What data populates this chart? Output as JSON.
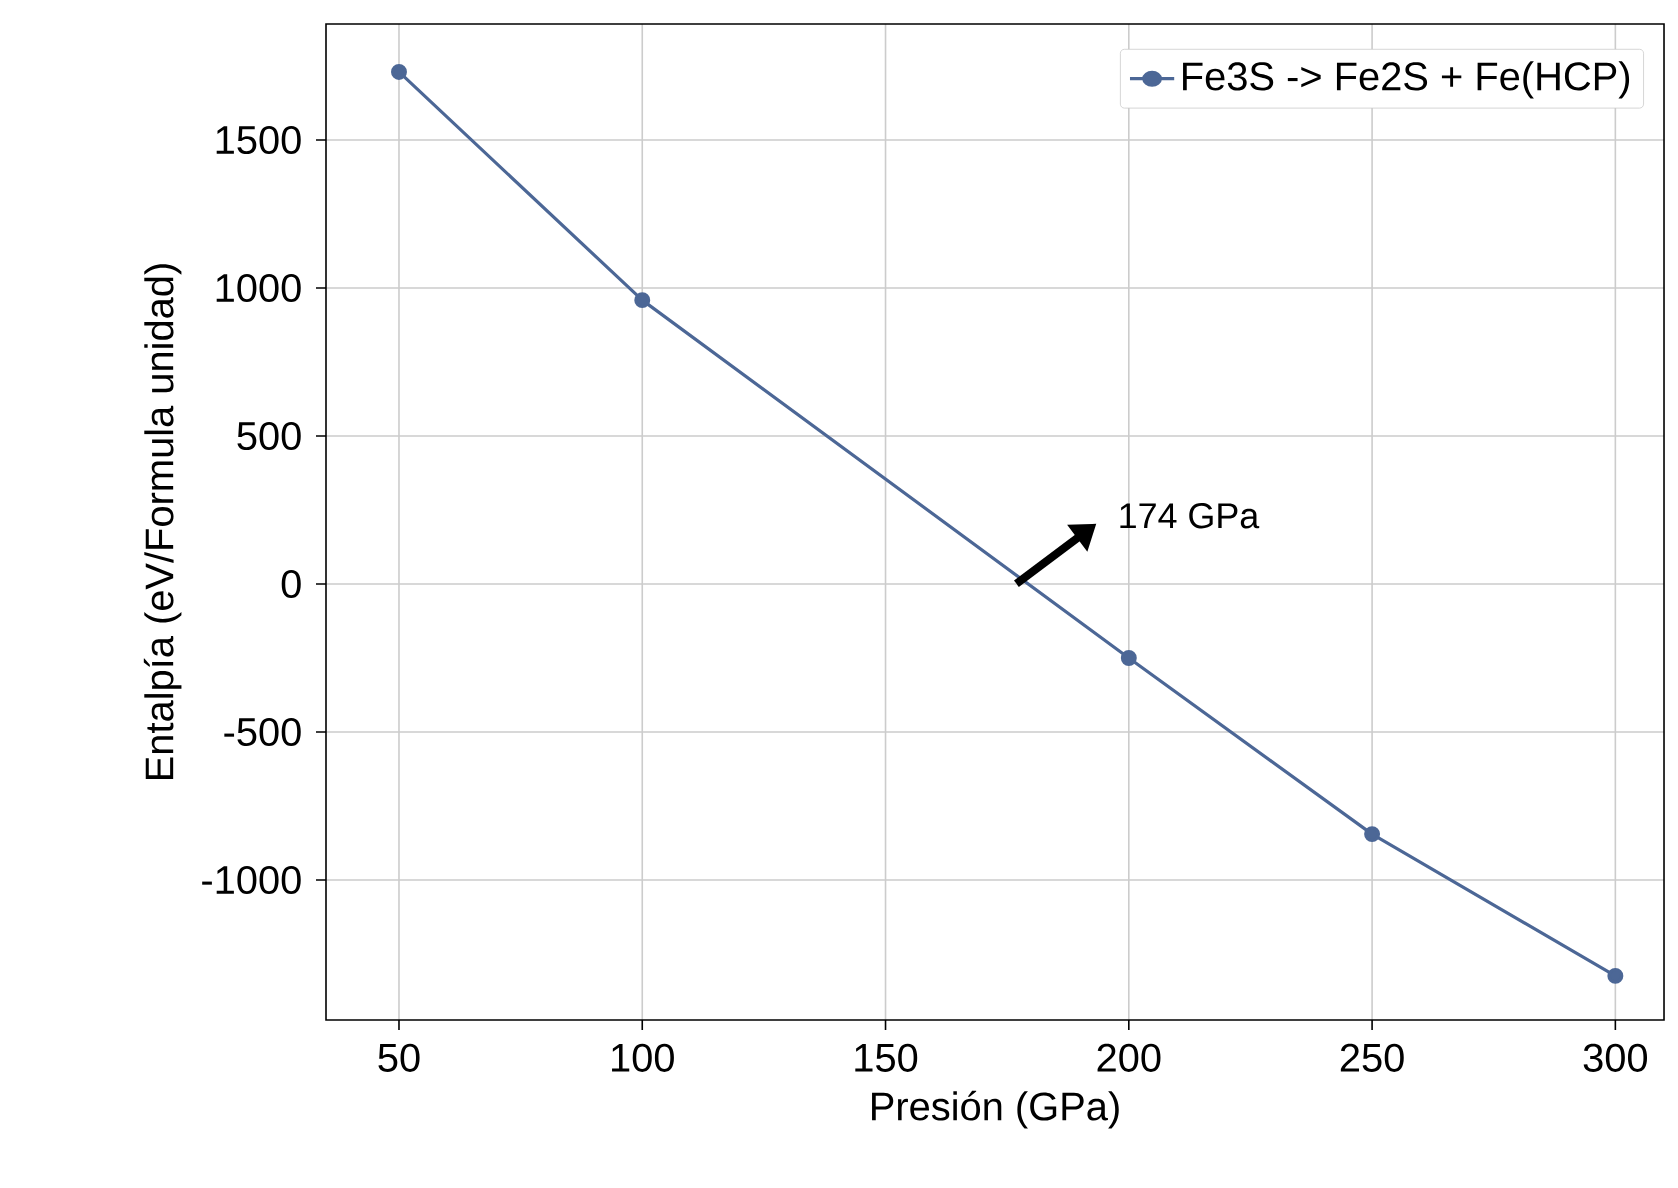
{
  "chart_data": {
    "type": "line",
    "xlabel": "Presión (GPa)",
    "ylabel": "Entalpía (eV/Formula unidad)",
    "x": [
      50,
      100,
      200,
      250,
      300
    ],
    "series": [
      {
        "name": "Fe3S -> Fe2S + Fe(HCP)",
        "color": "#4c6796",
        "values": [
          1730,
          959,
          -250,
          -845,
          -1324
        ]
      }
    ],
    "xlim": [
      35,
      310
    ],
    "ylim": [
      -1473,
      1892
    ],
    "xticks": [
      50,
      100,
      150,
      200,
      250,
      300
    ],
    "yticks": [
      -1000,
      -500,
      0,
      500,
      1000,
      1500
    ],
    "annotations": [
      "174 GPa"
    ],
    "grid": true,
    "legend": "top right",
    "marker": "circle",
    "line_style": "solid"
  }
}
